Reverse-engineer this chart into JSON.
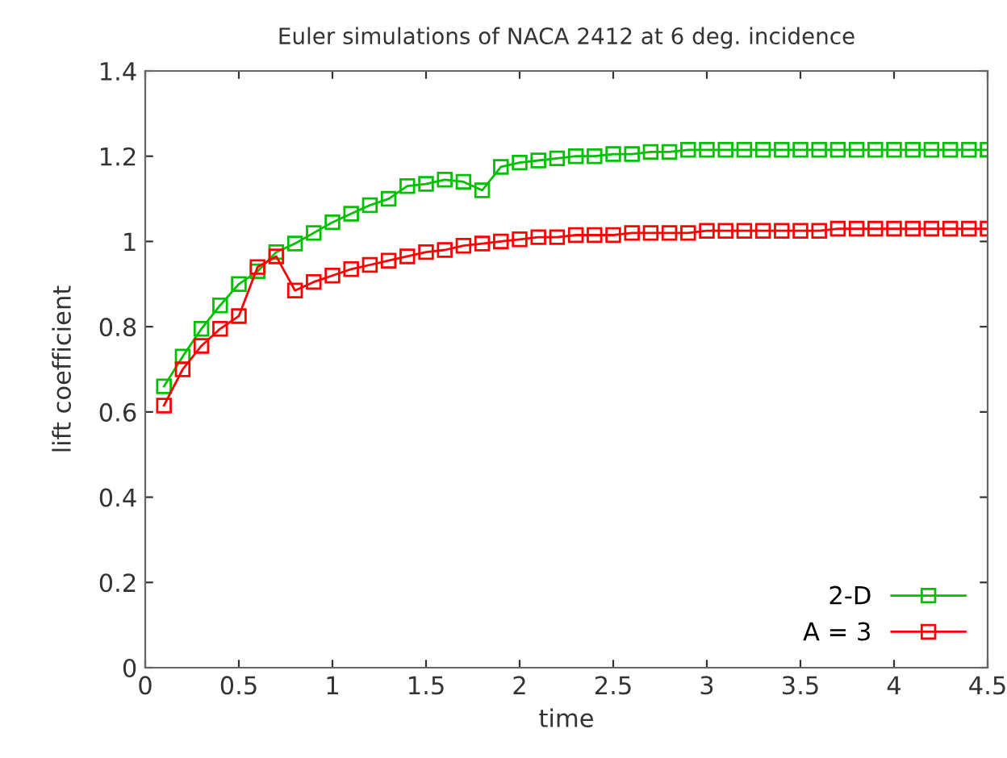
{
  "chart_data": {
    "type": "line",
    "title": "Euler simulations of NACA 2412 at 6 deg. incidence",
    "xlabel": "time",
    "ylabel": "lift coefficient",
    "x": [
      0.1,
      0.2,
      0.3,
      0.4,
      0.5,
      0.6,
      0.7,
      0.8,
      0.9,
      1.0,
      1.1,
      1.2,
      1.3,
      1.4,
      1.5,
      1.6,
      1.7,
      1.8,
      1.9,
      2.0,
      2.1,
      2.2,
      2.3,
      2.4,
      2.5,
      2.6,
      2.7,
      2.8,
      2.9,
      3.0,
      3.1,
      3.2,
      3.3,
      3.4,
      3.5,
      3.6,
      3.7,
      3.8,
      3.9,
      4.0,
      4.1,
      4.2,
      4.3,
      4.4,
      4.5
    ],
    "series": [
      {
        "name": "2-D",
        "color": "#00c000",
        "values": [
          0.66,
          0.73,
          0.795,
          0.85,
          0.9,
          0.93,
          0.975,
          0.995,
          1.02,
          1.045,
          1.065,
          1.085,
          1.1,
          1.13,
          1.135,
          1.145,
          1.14,
          1.12,
          1.175,
          1.185,
          1.19,
          1.195,
          1.2,
          1.2,
          1.205,
          1.205,
          1.21,
          1.21,
          1.215,
          1.215,
          1.215,
          1.215,
          1.215,
          1.215,
          1.215,
          1.215,
          1.215,
          1.215,
          1.215,
          1.215,
          1.215,
          1.215,
          1.215,
          1.215,
          1.215
        ]
      },
      {
        "name": "A = 3",
        "color": "#ff0000",
        "values": [
          0.615,
          0.7,
          0.755,
          0.795,
          0.825,
          0.94,
          0.965,
          0.885,
          0.905,
          0.92,
          0.935,
          0.945,
          0.955,
          0.965,
          0.975,
          0.98,
          0.99,
          0.995,
          1.0,
          1.005,
          1.01,
          1.01,
          1.015,
          1.015,
          1.015,
          1.02,
          1.02,
          1.02,
          1.02,
          1.025,
          1.025,
          1.025,
          1.025,
          1.025,
          1.025,
          1.025,
          1.03,
          1.03,
          1.03,
          1.03,
          1.03,
          1.03,
          1.03,
          1.03,
          1.03
        ]
      }
    ],
    "xlim": [
      0,
      4.5
    ],
    "xticks": [
      0,
      0.5,
      1,
      1.5,
      2,
      2.5,
      3,
      3.5,
      4,
      4.5
    ],
    "ylim": [
      0,
      1.4
    ],
    "yticks": [
      0,
      0.2,
      0.4,
      0.6,
      0.8,
      1,
      1.2,
      1.4
    ],
    "grid": false,
    "legend": "bottom right",
    "marker": "square",
    "line_style": "solid"
  }
}
